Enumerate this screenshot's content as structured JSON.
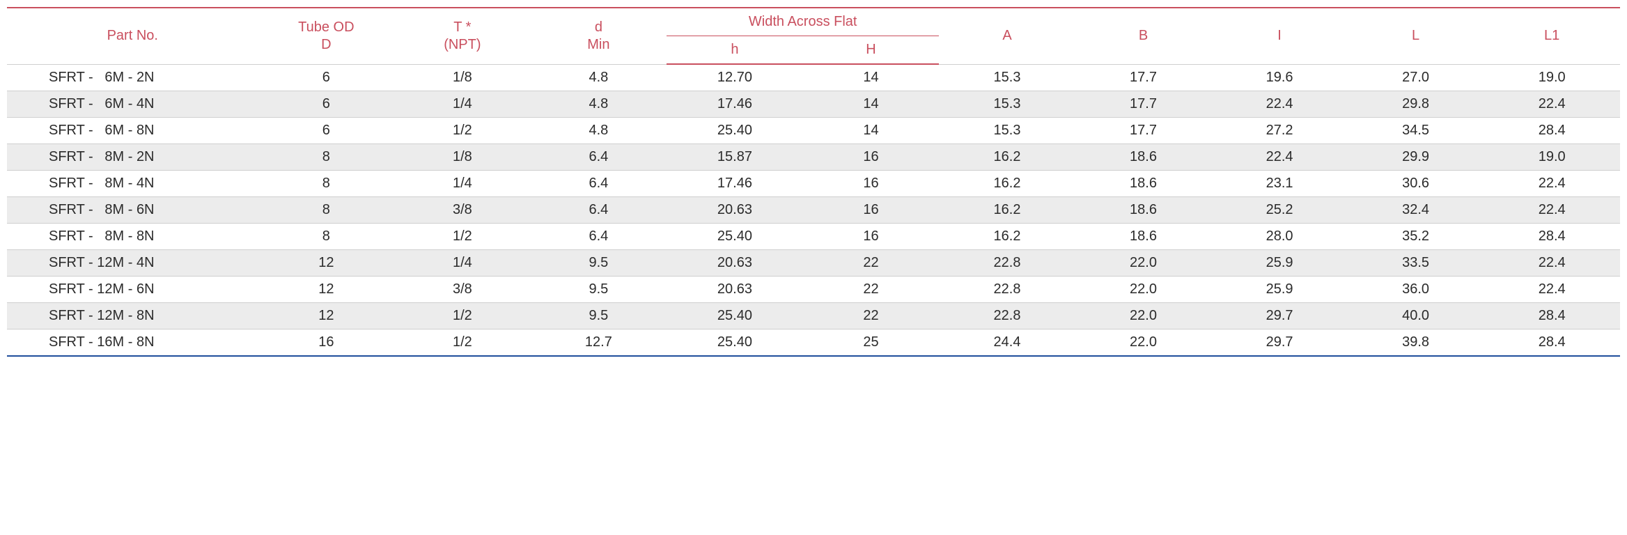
{
  "colors": {
    "header_text": "#c94f5e",
    "header_border": "#c94f5e",
    "row_alt_bg": "#ececec",
    "row_border": "#cfcfcf",
    "bottom_border": "#1f4e9c",
    "cell_text": "#2b2b2b",
    "background": "#ffffff"
  },
  "typography": {
    "header_fontsize": 20,
    "cell_fontsize": 20,
    "weight": 400
  },
  "headers": {
    "part_no": "Part No.",
    "tube_od_top": "Tube OD",
    "tube_od_bot": "D",
    "t_top": "T *",
    "t_bot": "(NPT)",
    "d_top": "d",
    "d_bot": "Min",
    "waf": "Width Across Flat",
    "waf_h_small": "h",
    "waf_h_big": "H",
    "A": "A",
    "B": "B",
    "I": "I",
    "L": "L",
    "L1": "L1"
  },
  "rows": [
    {
      "part": "SFRT -   6M - 2N",
      "D": "6",
      "T": "1/8",
      "d": "4.8",
      "h": "12.70",
      "H": "14",
      "A": "15.3",
      "B": "17.7",
      "I": "19.6",
      "L": "27.0",
      "L1": "19.0"
    },
    {
      "part": "SFRT -   6M - 4N",
      "D": "6",
      "T": "1/4",
      "d": "4.8",
      "h": "17.46",
      "H": "14",
      "A": "15.3",
      "B": "17.7",
      "I": "22.4",
      "L": "29.8",
      "L1": "22.4"
    },
    {
      "part": "SFRT -   6M - 8N",
      "D": "6",
      "T": "1/2",
      "d": "4.8",
      "h": "25.40",
      "H": "14",
      "A": "15.3",
      "B": "17.7",
      "I": "27.2",
      "L": "34.5",
      "L1": "28.4"
    },
    {
      "part": "SFRT -   8M - 2N",
      "D": "8",
      "T": "1/8",
      "d": "6.4",
      "h": "15.87",
      "H": "16",
      "A": "16.2",
      "B": "18.6",
      "I": "22.4",
      "L": "29.9",
      "L1": "19.0"
    },
    {
      "part": "SFRT -   8M - 4N",
      "D": "8",
      "T": "1/4",
      "d": "6.4",
      "h": "17.46",
      "H": "16",
      "A": "16.2",
      "B": "18.6",
      "I": "23.1",
      "L": "30.6",
      "L1": "22.4"
    },
    {
      "part": "SFRT -   8M - 6N",
      "D": "8",
      "T": "3/8",
      "d": "6.4",
      "h": "20.63",
      "H": "16",
      "A": "16.2",
      "B": "18.6",
      "I": "25.2",
      "L": "32.4",
      "L1": "22.4"
    },
    {
      "part": "SFRT -   8M - 8N",
      "D": "8",
      "T": "1/2",
      "d": "6.4",
      "h": "25.40",
      "H": "16",
      "A": "16.2",
      "B": "18.6",
      "I": "28.0",
      "L": "35.2",
      "L1": "28.4"
    },
    {
      "part": "SFRT - 12M - 4N",
      "D": "12",
      "T": "1/4",
      "d": "9.5",
      "h": "20.63",
      "H": "22",
      "A": "22.8",
      "B": "22.0",
      "I": "25.9",
      "L": "33.5",
      "L1": "22.4"
    },
    {
      "part": "SFRT - 12M - 6N",
      "D": "12",
      "T": "3/8",
      "d": "9.5",
      "h": "20.63",
      "H": "22",
      "A": "22.8",
      "B": "22.0",
      "I": "25.9",
      "L": "36.0",
      "L1": "22.4"
    },
    {
      "part": "SFRT - 12M - 8N",
      "D": "12",
      "T": "1/2",
      "d": "9.5",
      "h": "25.40",
      "H": "22",
      "A": "22.8",
      "B": "22.0",
      "I": "29.7",
      "L": "40.0",
      "L1": "28.4"
    },
    {
      "part": "SFRT - 16M - 8N",
      "D": "16",
      "T": "1/2",
      "d": "12.7",
      "h": "25.40",
      "H": "25",
      "A": "24.4",
      "B": "22.0",
      "I": "29.7",
      "L": "39.8",
      "L1": "28.4"
    }
  ]
}
